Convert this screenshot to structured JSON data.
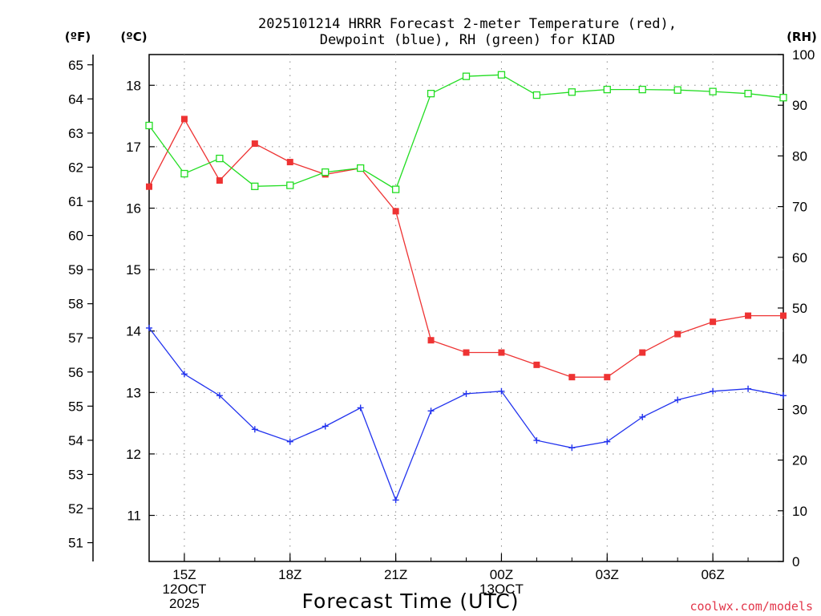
{
  "chart_data": {
    "type": "line",
    "title_line1": "2025101214 HRRR Forecast 2-meter Temperature (red),",
    "title_line2": "Dewpoint (blue), RH (green) for KIAD",
    "xlabel": "Forecast Time (UTC)",
    "credit": "coolwx.com/models",
    "axis_heads": {
      "fahrenheit": "(ºF)",
      "celsius": "(ºC)",
      "rh": "(RH)"
    },
    "x_forecast_hours": [
      14,
      15,
      16,
      17,
      18,
      19,
      20,
      21,
      22,
      23,
      24,
      25,
      26,
      27,
      28,
      29,
      30,
      31,
      32
    ],
    "xlim": [
      14,
      32
    ],
    "x_ticks": [
      {
        "x": 15,
        "lines": [
          "15Z",
          "12OCT",
          "2025"
        ]
      },
      {
        "x": 18,
        "lines": [
          "18Z"
        ]
      },
      {
        "x": 21,
        "lines": [
          "21Z"
        ]
      },
      {
        "x": 24,
        "lines": [
          "00Z",
          "13OCT"
        ]
      },
      {
        "x": 27,
        "lines": [
          "03Z"
        ]
      },
      {
        "x": 30,
        "lines": [
          "06Z"
        ]
      }
    ],
    "celsius_ylim": [
      10.25,
      18.5
    ],
    "celsius_ticks": [
      "11",
      "12",
      "13",
      "14",
      "15",
      "16",
      "17",
      "18"
    ],
    "fahrenheit_ticks": [
      "51",
      "52",
      "53",
      "54",
      "55",
      "56",
      "57",
      "58",
      "59",
      "60",
      "61",
      "62",
      "63",
      "64",
      "65"
    ],
    "rh_ylim": [
      0,
      100
    ],
    "rh_ticks": [
      "0",
      "10",
      "20",
      "30",
      "40",
      "50",
      "60",
      "70",
      "80",
      "90",
      "100"
    ],
    "series": [
      {
        "name": "2-meter Temperature",
        "axis": "celsius",
        "color": "#ee3333",
        "marker": "filled-square",
        "values": [
          16.35,
          17.45,
          16.45,
          17.05,
          16.75,
          16.55,
          16.65,
          15.95,
          13.85,
          13.65,
          13.65,
          13.45,
          13.25,
          13.25,
          13.65,
          13.95,
          14.15,
          14.25,
          14.25
        ]
      },
      {
        "name": "Dewpoint",
        "axis": "celsius",
        "color": "#2233ee",
        "marker": "plus",
        "values": [
          14.05,
          13.3,
          12.95,
          12.4,
          12.2,
          12.45,
          12.75,
          11.25,
          12.7,
          12.98,
          13.02,
          12.22,
          12.1,
          12.2,
          12.6,
          12.88,
          13.02,
          13.06,
          12.95
        ]
      },
      {
        "name": "RH",
        "axis": "rh",
        "color": "#22dd22",
        "marker": "open-square",
        "values": [
          86,
          76.5,
          79.5,
          74,
          74.2,
          76.8,
          77.6,
          73.4,
          92.3,
          95.7,
          96,
          92,
          92.6,
          93.1,
          93.1,
          93,
          92.7,
          92.3,
          91.5
        ]
      }
    ]
  }
}
